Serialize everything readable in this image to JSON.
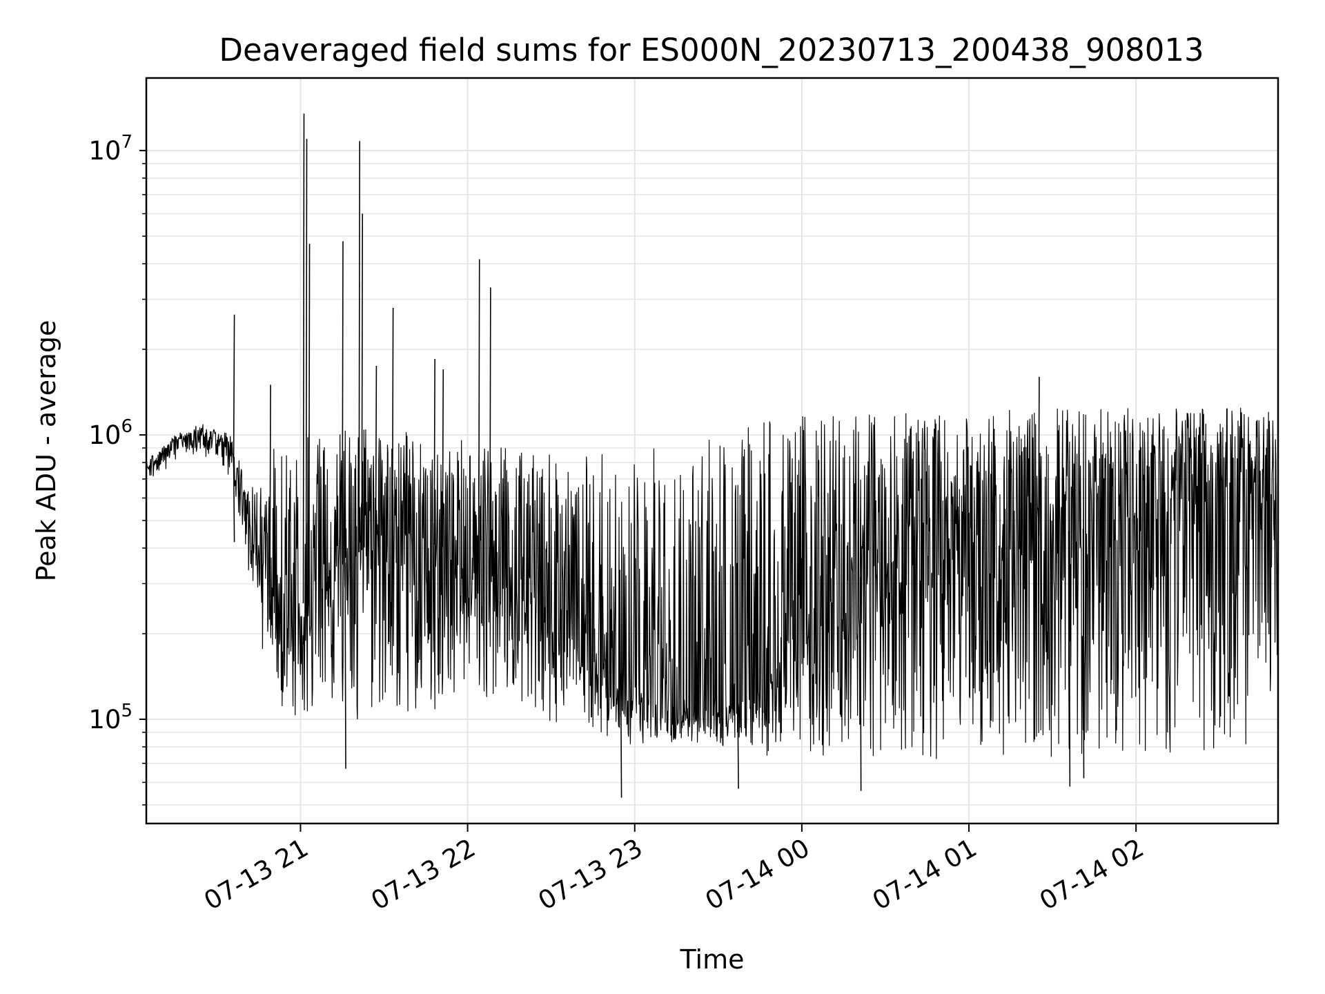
{
  "chart_data": {
    "type": "line",
    "title": "Deaveraged field sums for ES000N_20230713_200438_908013",
    "xlabel": "Time",
    "ylabel": "Peak ADU - average",
    "yscale": "log",
    "ylim": [
      43000,
      18000000
    ],
    "xlim": [
      "2023-07-13 20:04:38",
      "2023-07-14 02:51:00"
    ],
    "grid": true,
    "legend": "none",
    "line_color": "#000000",
    "grid_color": "#e6e6e6",
    "x_ticks": [
      {
        "time": "2023-07-13 21:00",
        "label": "07-13 21"
      },
      {
        "time": "2023-07-13 22:00",
        "label": "07-13 22"
      },
      {
        "time": "2023-07-13 23:00",
        "label": "07-13 23"
      },
      {
        "time": "2023-07-14 00:00",
        "label": "07-14 00"
      },
      {
        "time": "2023-07-14 01:00",
        "label": "07-14 01"
      },
      {
        "time": "2023-07-14 02:00",
        "label": "07-14 02"
      }
    ],
    "y_ticks": [
      {
        "value": 100000,
        "base": "10",
        "exp": "5"
      },
      {
        "value": 1000000,
        "base": "10",
        "exp": "6"
      },
      {
        "value": 10000000,
        "base": "10",
        "exp": "7"
      }
    ],
    "series": [
      {
        "envelope": {
          "time": [
            "2023-07-13 20:04",
            "2023-07-13 20:15",
            "2023-07-13 20:25",
            "2023-07-13 20:35",
            "2023-07-13 20:40",
            "2023-07-13 20:45",
            "2023-07-13 20:50",
            "2023-07-13 20:55",
            "2023-07-13 21:00",
            "2023-07-13 21:15",
            "2023-07-13 21:30",
            "2023-07-13 21:45",
            "2023-07-13 22:00",
            "2023-07-13 22:15",
            "2023-07-13 22:30",
            "2023-07-13 22:45",
            "2023-07-13 23:00",
            "2023-07-13 23:15",
            "2023-07-13 23:30",
            "2023-07-13 23:45",
            "2023-07-14 00:00",
            "2023-07-14 00:30",
            "2023-07-14 01:00",
            "2023-07-14 01:30",
            "2023-07-14 02:00",
            "2023-07-14 02:30",
            "2023-07-14 02:51"
          ],
          "upper": [
            800000,
            1000000,
            1100000,
            1000000,
            700000,
            650000,
            900000,
            950000,
            1000000,
            1050000,
            1050000,
            1000000,
            950000,
            900000,
            850000,
            850000,
            900000,
            950000,
            1000000,
            1100000,
            1200000,
            1200000,
            1200000,
            1250000,
            1250000,
            1250000,
            1250000
          ],
          "lower": [
            650000,
            800000,
            850000,
            700000,
            400000,
            200000,
            120000,
            95000,
            100000,
            95000,
            95000,
            100000,
            100000,
            100000,
            90000,
            90000,
            80000,
            80000,
            80000,
            75000,
            70000,
            70000,
            70000,
            70000,
            72000,
            75000,
            80000
          ],
          "median": [
            750000,
            950000,
            1000000,
            900000,
            550000,
            350000,
            250000,
            180000,
            250000,
            350000,
            450000,
            420000,
            380000,
            320000,
            250000,
            180000,
            130000,
            110000,
            110000,
            120000,
            250000,
            350000,
            400000,
            450000,
            500000,
            650000,
            700000
          ]
        },
        "spikes": [
          {
            "time": "2023-07-13 20:36",
            "value": 2650000
          },
          {
            "time": "2023-07-13 20:49",
            "value": 1500000
          },
          {
            "time": "2023-07-13 21:01",
            "value": 13500000
          },
          {
            "time": "2023-07-13 21:02",
            "value": 11000000
          },
          {
            "time": "2023-07-13 21:03",
            "value": 4700000
          },
          {
            "time": "2023-07-13 21:15",
            "value": 4800000
          },
          {
            "time": "2023-07-13 21:21",
            "value": 10800000
          },
          {
            "time": "2023-07-13 21:22",
            "value": 6000000
          },
          {
            "time": "2023-07-13 21:27",
            "value": 1750000
          },
          {
            "time": "2023-07-13 21:33",
            "value": 2800000
          },
          {
            "time": "2023-07-13 21:48",
            "value": 1850000
          },
          {
            "time": "2023-07-13 21:51",
            "value": 1700000
          },
          {
            "time": "2023-07-13 22:04",
            "value": 4150000
          },
          {
            "time": "2023-07-13 22:08",
            "value": 3300000
          },
          {
            "time": "2023-07-14 01:25",
            "value": 1600000
          }
        ],
        "dips": [
          {
            "time": "2023-07-13 20:36",
            "value": 420000
          },
          {
            "time": "2023-07-13 21:16",
            "value": 67000
          },
          {
            "time": "2023-07-13 22:55",
            "value": 53000
          },
          {
            "time": "2023-07-13 23:37",
            "value": 57000
          },
          {
            "time": "2023-07-14 00:21",
            "value": 56000
          },
          {
            "time": "2023-07-14 01:36",
            "value": 58000
          },
          {
            "time": "2023-07-14 01:41",
            "value": 62000
          }
        ]
      }
    ]
  }
}
